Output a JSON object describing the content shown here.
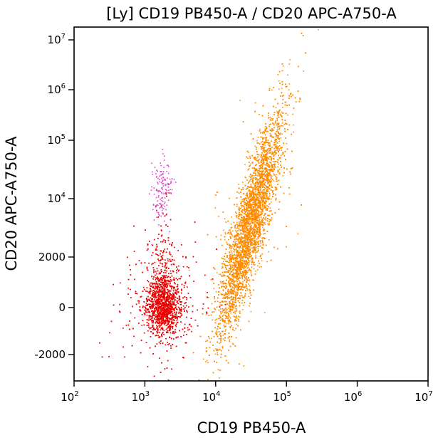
{
  "chart_data": {
    "type": "scatter",
    "title": "[Ly] CD19 PB450-A / CD20 APC-A750-A",
    "xlabel": "CD19 PB450-A",
    "ylabel": "CD20 APC-A750-A",
    "x_scale": "log",
    "y_scale": "biexponential",
    "xlim": [
      100,
      10000000
    ],
    "ylim": [
      -3000,
      10000000
    ],
    "grid": false,
    "x_ticks": [
      {
        "value": 100,
        "base": "10",
        "exp": "2"
      },
      {
        "value": 1000,
        "base": "10",
        "exp": "3"
      },
      {
        "value": 10000,
        "base": "10",
        "exp": "4"
      },
      {
        "value": 100000,
        "base": "10",
        "exp": "5"
      },
      {
        "value": 1000000,
        "base": "10",
        "exp": "6"
      },
      {
        "value": 10000000,
        "base": "10",
        "exp": "7"
      }
    ],
    "y_ticks": [
      {
        "value": -2000,
        "text": "-2000"
      },
      {
        "value": 0,
        "text": "0"
      },
      {
        "value": 2000,
        "text": "2000"
      },
      {
        "value": 10000,
        "base": "10",
        "exp": "4"
      },
      {
        "value": 100000,
        "base": "10",
        "exp": "5"
      },
      {
        "value": 1000000,
        "base": "10",
        "exp": "6"
      },
      {
        "value": 10000000,
        "base": "10",
        "exp": "7"
      }
    ],
    "populations": [
      {
        "color": "#ff8c00",
        "count": 9000,
        "center": [
          30000,
          5000
        ],
        "description": "orange CD19+ CD20+ cluster"
      },
      {
        "color": "#ee0000",
        "count": 3500,
        "center": [
          1800,
          0
        ],
        "description": "red CD19- CD20- cluster"
      },
      {
        "color": "#dd44cc",
        "count": 140,
        "center": [
          1700,
          15000
        ],
        "description": "magenta CD19- CD20+ events"
      }
    ]
  }
}
